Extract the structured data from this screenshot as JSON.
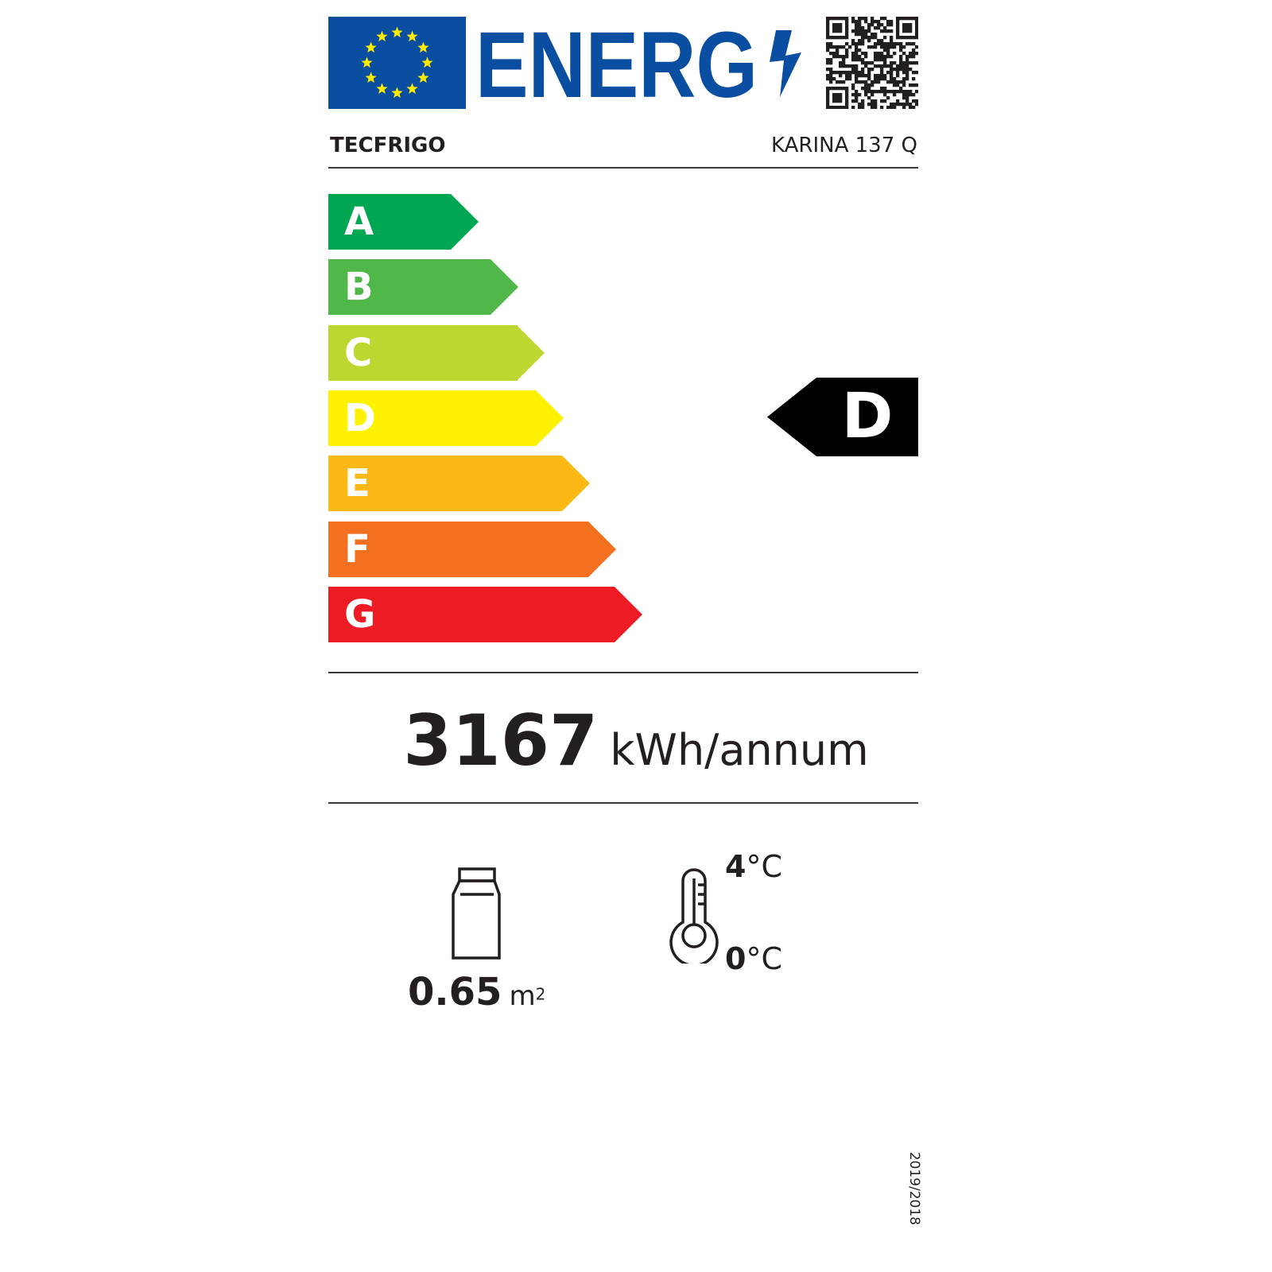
{
  "header": {
    "logo_text": "ENERG",
    "eu_flag_colors": {
      "blue": "#0a4ea2",
      "stars": "#ffed00"
    },
    "brand_color": "#0a4ea2",
    "qr_icon": "qr-code-icon"
  },
  "supplier": "TECFRIGO",
  "model": "KARINA 137 Q",
  "scale": [
    {
      "letter": "A",
      "color": "#00a651"
    },
    {
      "letter": "B",
      "color": "#50b848"
    },
    {
      "letter": "C",
      "color": "#bed630"
    },
    {
      "letter": "D",
      "color": "#fff200"
    },
    {
      "letter": "E",
      "color": "#fcb814"
    },
    {
      "letter": "F",
      "color": "#f37021"
    },
    {
      "letter": "G",
      "color": "#ed1c24"
    }
  ],
  "rating": {
    "class": "D",
    "color": "#000000"
  },
  "energy": {
    "value": "3167",
    "unit": "kWh/annum"
  },
  "display_area": {
    "value": "0.65",
    "unit": "m",
    "sup": "2",
    "icon": "display-cabinet-icon"
  },
  "temperature": {
    "max_value": "4",
    "min_value": "0",
    "unit": "°C",
    "icon": "thermometer-icon"
  },
  "regulation": "2019/2018"
}
